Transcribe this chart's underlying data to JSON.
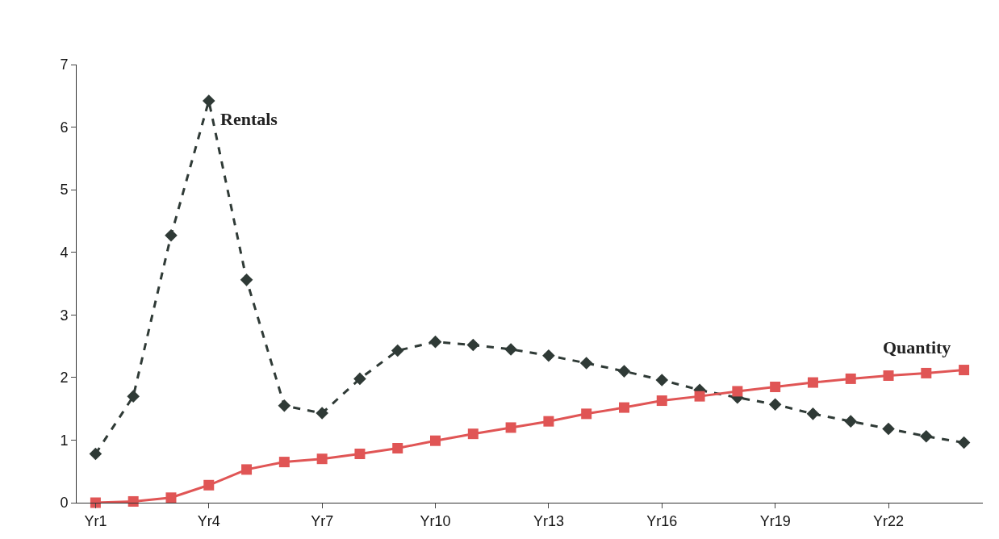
{
  "chart_data": {
    "type": "line",
    "categories": [
      "Yr1",
      null,
      null,
      "Yr4",
      null,
      null,
      "Yr7",
      null,
      null,
      "Yr10",
      null,
      null,
      "Yr13",
      null,
      null,
      "Yr16",
      null,
      null,
      "Yr19",
      null,
      null,
      "Yr22",
      null,
      null
    ],
    "series": [
      {
        "name": "Rentals",
        "color": "#2f3a36",
        "marker": "diamond",
        "line_style": "dashed",
        "values": [
          0.78,
          1.7,
          4.27,
          6.42,
          3.56,
          1.55,
          1.43,
          1.98,
          2.43,
          2.57,
          2.52,
          2.45,
          2.35,
          2.23,
          2.1,
          1.96,
          1.8,
          1.68,
          1.57,
          1.42,
          1.3,
          1.18,
          1.06,
          0.96
        ]
      },
      {
        "name": "Quantity",
        "color": "#e05555",
        "marker": "square",
        "line_style": "solid",
        "values": [
          0,
          0.02,
          0.08,
          0.28,
          0.53,
          0.65,
          0.7,
          0.78,
          0.87,
          0.99,
          1.1,
          1.2,
          1.3,
          1.42,
          1.52,
          1.63,
          1.7,
          1.78,
          1.85,
          1.92,
          1.98,
          2.03,
          2.07,
          2.12
        ]
      }
    ],
    "ylim": [
      0,
      7
    ],
    "yticks": [
      0,
      1,
      2,
      3,
      4,
      5,
      6,
      7
    ]
  }
}
